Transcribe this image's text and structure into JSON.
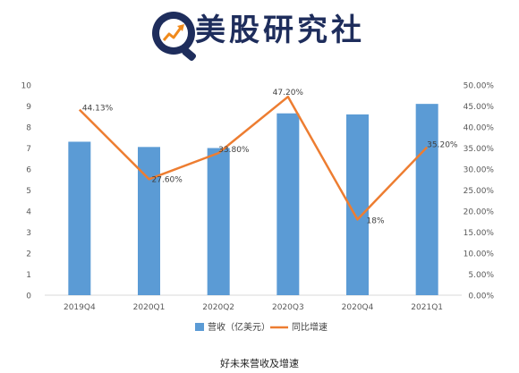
{
  "header": {
    "brand_name": "美股研究社",
    "logo_icon": "magnifier-growth-arrow-icon",
    "colors": {
      "brand_navy": "#1e2d5c",
      "brand_orange": "#f08a1c"
    }
  },
  "caption": "好未来营收及增速",
  "chart_data": {
    "type": "bar",
    "categories": [
      "2019Q4",
      "2020Q1",
      "2020Q2",
      "2020Q3",
      "2020Q4",
      "2021Q1"
    ],
    "series": [
      {
        "name": "营收（亿美元）",
        "kind": "bar",
        "axis": "left",
        "color": "#5b9bd5",
        "values": [
          7.3,
          7.05,
          7.0,
          8.65,
          8.6,
          9.1
        ]
      },
      {
        "name": "同比增速",
        "kind": "line",
        "axis": "right",
        "color": "#ed7d31",
        "values": [
          44.13,
          27.6,
          33.8,
          47.2,
          18.0,
          35.2
        ],
        "labels": [
          "44.13%",
          "27.60%",
          "33.80%",
          "47.20%",
          "18%",
          "35.20%"
        ]
      }
    ],
    "y_left": {
      "min": 0,
      "max": 10,
      "step": 1,
      "ticks": [
        "0",
        "1",
        "2",
        "3",
        "4",
        "5",
        "6",
        "7",
        "8",
        "9",
        "10"
      ]
    },
    "y_right": {
      "min": 0,
      "max": 50,
      "step": 5,
      "ticks": [
        "0.00%",
        "5.00%",
        "10.00%",
        "15.00%",
        "20.00%",
        "25.00%",
        "30.00%",
        "35.00%",
        "40.00%",
        "45.00%",
        "50.00%"
      ]
    },
    "legend": {
      "position": "bottom",
      "entries": [
        {
          "label": "营收（亿美元）",
          "marker": "bar"
        },
        {
          "label": "同比增速",
          "marker": "line"
        }
      ]
    },
    "grid": false
  }
}
